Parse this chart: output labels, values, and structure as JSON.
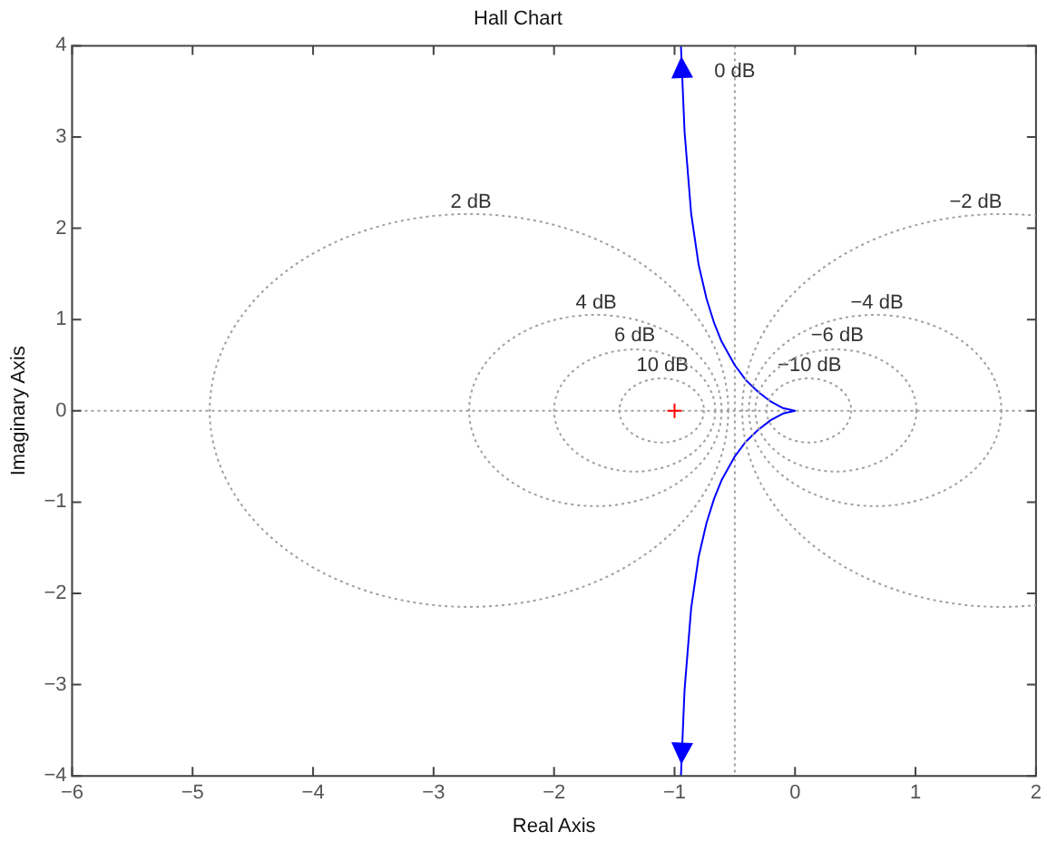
{
  "chart_data": {
    "type": "line",
    "title": "Hall Chart",
    "xlabel": "Real Axis",
    "ylabel": "Imaginary Axis",
    "xlim": [
      -6,
      2
    ],
    "xticks": [
      -6,
      -5,
      -4,
      -3,
      -2,
      -1,
      0,
      1,
      2
    ],
    "ylim": [
      -4,
      4
    ],
    "yticks": [
      -4,
      -3,
      -2,
      -1,
      0,
      1,
      2,
      3,
      4
    ],
    "grid": false,
    "legend": false,
    "marker": "none",
    "ref_lines": [
      {
        "axis": "y",
        "value": 0,
        "color": "#a0a0a0",
        "line_style": "dotted"
      }
    ],
    "annotations": [
      "2 dB",
      "−2 dB",
      "4 dB",
      "−4 dB",
      "6 dB",
      "−6 dB",
      "10 dB",
      "−10 dB"
    ],
    "series": [
      {
        "color": "#0000ff",
        "line_style": "solid",
        "x": [
          -0.947,
          -0.917,
          -0.862,
          -0.8,
          -0.735,
          -0.671,
          -0.61,
          -0.5,
          -0.41,
          -0.308,
          -0.2,
          -0.1,
          0,
          -0.1,
          -0.2,
          -0.308,
          -0.41,
          -0.5,
          -0.61,
          -0.671,
          -0.735,
          -0.8,
          -0.862,
          -0.917,
          -0.947
        ],
        "values": [
          4,
          3.06,
          2.16,
          1.6,
          1.23,
          0.96,
          0.76,
          0.5,
          0.34,
          0.21,
          0.1,
          0.03,
          0,
          -0.03,
          -0.1,
          -0.21,
          -0.34,
          -0.5,
          -0.76,
          -0.96,
          -1.23,
          -1.6,
          -2.16,
          -3.06,
          -4
        ]
      },
      {
        "name": "0 dB",
        "color": "#a0a0a0",
        "line_style": "dotted",
        "x": [
          -0.5,
          -0.5
        ],
        "values": [
          4,
          -4
        ]
      },
      {
        "type": "scatter",
        "color": "#ff0000",
        "marker": "cross",
        "x": [
          -1
        ],
        "values": [
          0
        ]
      }
    ]
  }
}
